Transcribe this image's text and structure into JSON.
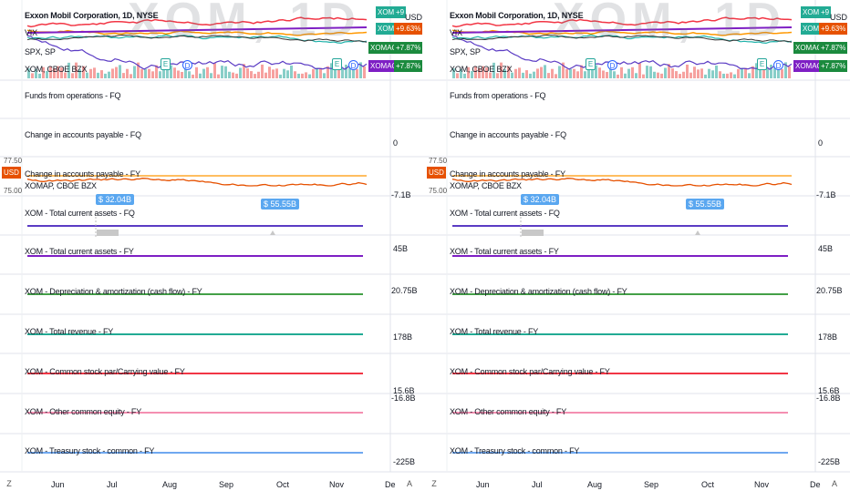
{
  "main_chart": {
    "title": "Exxon Mobil Corporation, 1D, NYSE",
    "watermark": "XOM, 1D",
    "sym_vix": "VIX",
    "sym_spx": "SPX, SP",
    "sym_xom_bzx": "XOM, CBOE BZX",
    "events": [
      "E",
      "D",
      "E",
      "D"
    ]
  },
  "price_scale_badges": {
    "xom_top": "XOM",
    "currency": "USD",
    "xom_pct": "+9.63%",
    "xom_prefix": "+9",
    "xomao_1": "XOMAO",
    "xomao_1_pct": "+7.87%",
    "xomao_2": "XOMAO",
    "xomao_2_pct": "+7.87%"
  },
  "panes": {
    "funds": {
      "label": "Funds from operations - FQ"
    },
    "ap_fq": {
      "label": "Change in accounts payable - FQ",
      "scale": "0"
    },
    "ap_fy": {
      "label": "Change in accounts payable - FY",
      "scale": "-7.1B",
      "left_top": "77.50",
      "left_cur": "USD",
      "left_bottom": "75.00"
    },
    "xomap": {
      "label": "XOMAP, CBOE BZX"
    },
    "tca_fq": {
      "label": "XOM - Total current assets - FQ",
      "callout_1": "$ 32.04B",
      "callout_2": "$ 55.55B"
    },
    "tca_fy": {
      "label": "XOM - Total current assets - FY",
      "scale": "45B"
    },
    "da_fy": {
      "label": "XOM - Depreciation & amortization (cash flow) - FY",
      "scale": "20.75B"
    },
    "rev_fy": {
      "label": "XOM - Total revenue - FY",
      "scale": "178B"
    },
    "csp_fy": {
      "label": "XOM - Common stock par/Carrying value - FY",
      "scale": "15.6B"
    },
    "oce_fy": {
      "label": "XOM - Other common equity - FY",
      "scale": "-16.8B"
    },
    "ts_fy": {
      "label": "XOM - Treasury stock - common - FY",
      "scale": "-225B"
    }
  },
  "time_axis": {
    "z_button": "Z",
    "auto_button": "A",
    "ticks": [
      "Jun",
      "Jul",
      "Aug",
      "Sep",
      "Oct",
      "Nov",
      "De"
    ]
  },
  "colors": {
    "red": "#f23645",
    "orange": "#ff9800",
    "purple": "#7e1fc4",
    "indigo": "#5b3cc4",
    "teal": "#22ab94",
    "green": "#43a047",
    "pink": "#f48fb1",
    "blue": "#6fa8f0",
    "navy": "#1e3a8a"
  }
}
